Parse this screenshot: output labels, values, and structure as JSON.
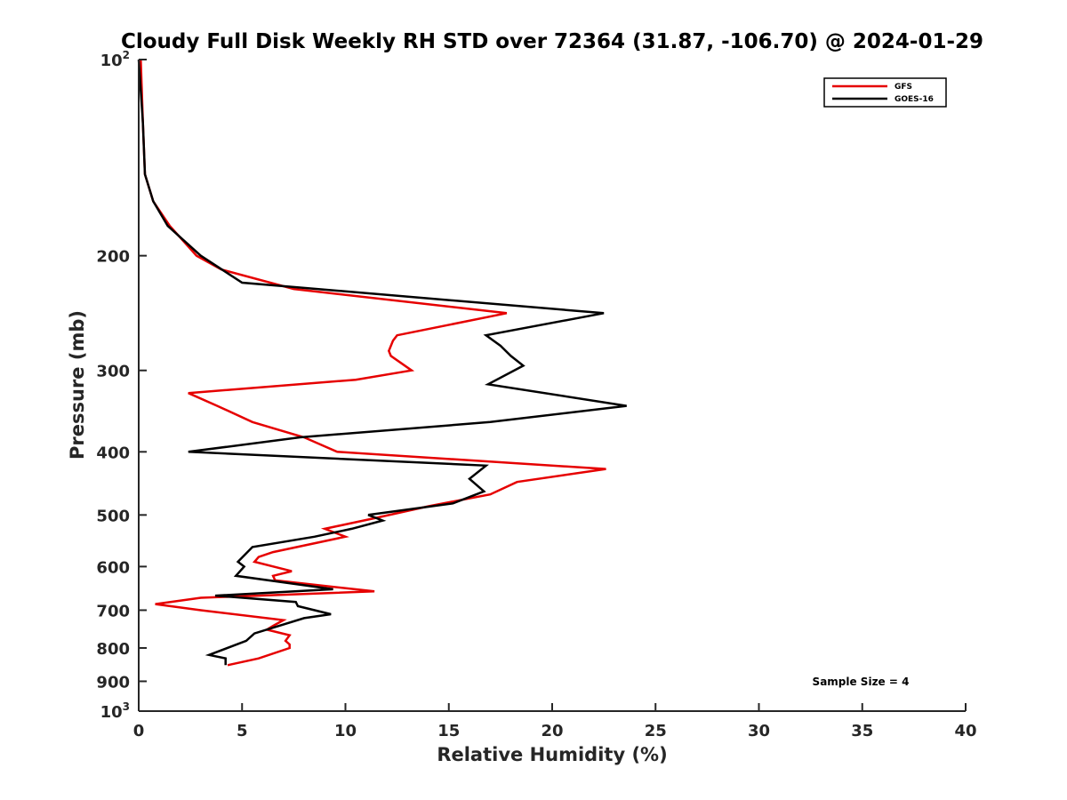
{
  "chart_data": {
    "type": "line",
    "title": "Cloudy Full Disk Weekly RH STD over 72364 (31.87, -106.70) @ 2024-01-29",
    "xlabel": "Relative Humidity (%)",
    "ylabel": "Pressure (mb)",
    "xlim": [
      0,
      40
    ],
    "ylim": [
      100,
      1000
    ],
    "y_scale": "log",
    "y_reversed": true,
    "grid": false,
    "legend_position": "top-right",
    "annotation": "Sample Size = 4",
    "x_ticks": [
      0,
      5,
      10,
      15,
      20,
      25,
      30,
      35,
      40
    ],
    "x_tick_labels": [
      "0",
      "5",
      "10",
      "15",
      "20",
      "25",
      "30",
      "35",
      "40"
    ],
    "y_ticks": [
      {
        "value": 100,
        "base": "10",
        "exp": "2"
      },
      {
        "value": 200,
        "label": "200"
      },
      {
        "value": 300,
        "label": "300"
      },
      {
        "value": 400,
        "label": "400"
      },
      {
        "value": 500,
        "label": "500"
      },
      {
        "value": 600,
        "label": "600"
      },
      {
        "value": 700,
        "label": "700"
      },
      {
        "value": 800,
        "label": "800"
      },
      {
        "value": 900,
        "label": "900"
      },
      {
        "value": 1000,
        "base": "10",
        "exp": "3"
      }
    ],
    "series": [
      {
        "name": "GFS",
        "color": "#e60000",
        "points": [
          [
            0.1,
            100
          ],
          [
            0.2,
            125
          ],
          [
            0.3,
            150
          ],
          [
            0.7,
            165
          ],
          [
            1.5,
            180
          ],
          [
            2.8,
            200
          ],
          [
            4.0,
            210
          ],
          [
            7.5,
            225
          ],
          [
            17.8,
            245
          ],
          [
            12.5,
            265
          ],
          [
            12.3,
            270
          ],
          [
            12.1,
            280
          ],
          [
            12.2,
            285
          ],
          [
            13.2,
            300
          ],
          [
            10.5,
            310
          ],
          [
            2.4,
            325
          ],
          [
            3.8,
            340
          ],
          [
            5.5,
            360
          ],
          [
            8.0,
            380
          ],
          [
            9.6,
            400
          ],
          [
            22.6,
            425
          ],
          [
            18.3,
            445
          ],
          [
            17.0,
            465
          ],
          [
            14.0,
            485
          ],
          [
            11.5,
            505
          ],
          [
            9.0,
            525
          ],
          [
            10.0,
            540
          ],
          [
            6.5,
            570
          ],
          [
            5.8,
            580
          ],
          [
            5.6,
            590
          ],
          [
            7.4,
            610
          ],
          [
            6.5,
            620
          ],
          [
            6.6,
            630
          ],
          [
            11.4,
            655
          ],
          [
            3.0,
            670
          ],
          [
            0.8,
            685
          ],
          [
            3.0,
            700
          ],
          [
            7.0,
            725
          ],
          [
            6.5,
            740
          ],
          [
            6.2,
            750
          ],
          [
            7.3,
            765
          ],
          [
            7.1,
            780
          ],
          [
            7.3,
            790
          ],
          [
            7.3,
            800
          ],
          [
            5.8,
            830
          ],
          [
            4.3,
            850
          ]
        ]
      },
      {
        "name": "GOES-16",
        "color": "#000000",
        "points": [
          [
            0.0,
            100
          ],
          [
            0.2,
            125
          ],
          [
            0.3,
            150
          ],
          [
            0.7,
            165
          ],
          [
            1.4,
            180
          ],
          [
            3.0,
            200
          ],
          [
            5.0,
            220
          ],
          [
            22.5,
            245
          ],
          [
            16.8,
            265
          ],
          [
            17.5,
            275
          ],
          [
            18.0,
            285
          ],
          [
            18.6,
            295
          ],
          [
            16.9,
            315
          ],
          [
            23.6,
            340
          ],
          [
            17.0,
            360
          ],
          [
            7.8,
            380
          ],
          [
            2.4,
            400
          ],
          [
            16.8,
            420
          ],
          [
            16.0,
            440
          ],
          [
            16.7,
            460
          ],
          [
            15.2,
            480
          ],
          [
            11.1,
            500
          ],
          [
            11.8,
            510
          ],
          [
            10.3,
            525
          ],
          [
            8.5,
            540
          ],
          [
            5.5,
            560
          ],
          [
            4.8,
            590
          ],
          [
            5.1,
            600
          ],
          [
            4.7,
            620
          ],
          [
            9.4,
            650
          ],
          [
            3.7,
            665
          ],
          [
            7.6,
            680
          ],
          [
            7.7,
            690
          ],
          [
            9.3,
            710
          ],
          [
            8.0,
            720
          ],
          [
            5.6,
            760
          ],
          [
            5.2,
            780
          ],
          [
            3.4,
            820
          ],
          [
            4.2,
            830
          ],
          [
            4.2,
            850
          ]
        ]
      }
    ]
  }
}
